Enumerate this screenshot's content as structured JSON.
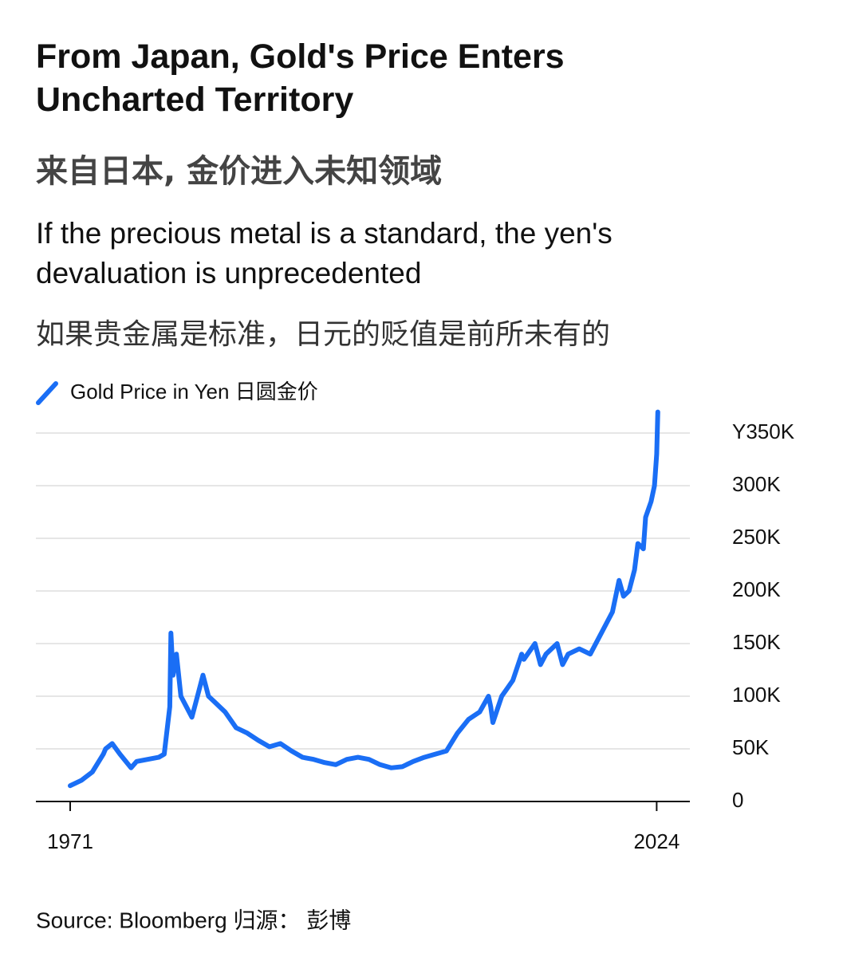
{
  "chart_data": {
    "type": "line",
    "title": "From Japan, Gold's Price Enters Uncharted Territory",
    "title_zh": "来自日本, 金价进入未知领域",
    "subtitle": "If the precious metal is a standard, the yen's devaluation is unprecedented",
    "subtitle_zh": "如果贵金属是标准，日元的贬值是前所未有的",
    "source": "Source: Bloomberg 归源： 彭博",
    "x": [
      1971,
      1972,
      1973,
      1974,
      1974.2,
      1974.8,
      1975.5,
      1976.5,
      1977,
      1978,
      1979,
      1979.5,
      1980,
      1980.1,
      1980.3,
      1980.6,
      1981,
      1981.5,
      1982,
      1982.5,
      1983,
      1983.5,
      1984,
      1985,
      1986,
      1987,
      1988,
      1989,
      1990,
      1991,
      1992,
      1993,
      1994,
      1995,
      1996,
      1997,
      1998,
      1999,
      2000,
      2001,
      2002,
      2003,
      2004,
      2005,
      2006,
      2007,
      2008,
      2008.8,
      2009,
      2009.2,
      2010,
      2011,
      2011.8,
      2012,
      2013,
      2013.5,
      2014,
      2015,
      2015.5,
      2016,
      2017,
      2018,
      2019,
      2020,
      2020.6,
      2021,
      2021.5,
      2022,
      2022.3,
      2022.8,
      2023,
      2023.5,
      2023.8,
      2024,
      2024.1
    ],
    "series": [
      {
        "name": "Gold Price in Yen 日圆金价",
        "color": "#1a6ef5",
        "values": [
          15000,
          20000,
          28000,
          45000,
          50000,
          55000,
          45000,
          32000,
          38000,
          40000,
          42000,
          45000,
          90000,
          160000,
          120000,
          140000,
          100000,
          90000,
          80000,
          100000,
          120000,
          100000,
          95000,
          85000,
          70000,
          65000,
          58000,
          52000,
          55000,
          48000,
          42000,
          40000,
          37000,
          35000,
          40000,
          42000,
          40000,
          35000,
          32000,
          33000,
          38000,
          42000,
          45000,
          48000,
          65000,
          78000,
          85000,
          100000,
          90000,
          75000,
          100000,
          115000,
          140000,
          135000,
          150000,
          130000,
          140000,
          150000,
          130000,
          140000,
          145000,
          140000,
          160000,
          180000,
          210000,
          195000,
          200000,
          220000,
          245000,
          240000,
          270000,
          285000,
          300000,
          330000,
          370000
        ]
      }
    ],
    "xlim": [
      1967.9,
      2027.0
    ],
    "xticks": [
      1971,
      2024
    ],
    "ylim": [
      0,
      375000
    ],
    "yticks": [
      0,
      {
        "value": 50000,
        "label": "50K"
      },
      {
        "value": 100000,
        "label": "100K"
      },
      {
        "value": 150000,
        "label": "150K"
      },
      {
        "value": 200000,
        "label": "200K"
      },
      {
        "value": 250000,
        "label": "250K"
      },
      {
        "value": 300000,
        "label": "300K"
      },
      {
        "value": 350000,
        "label": "Y350K"
      }
    ],
    "grid": true
  }
}
